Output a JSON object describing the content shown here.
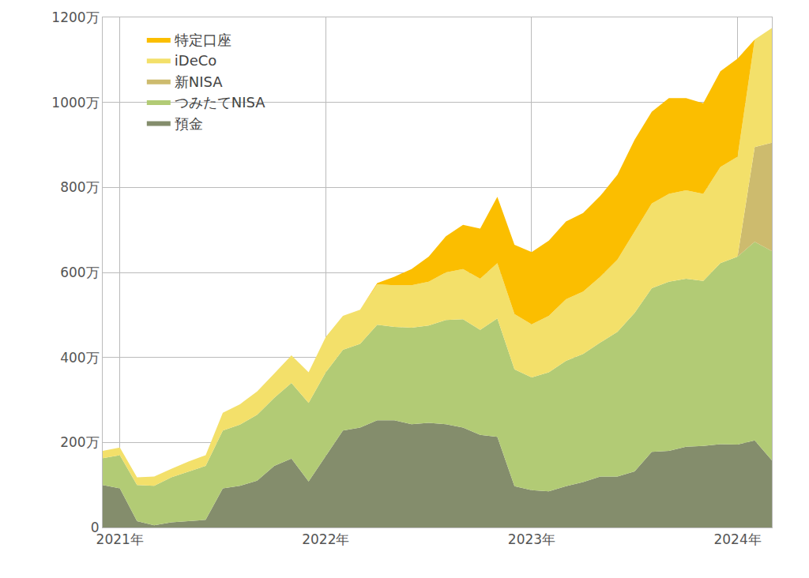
{
  "chart_data": {
    "type": "area",
    "stacked": true,
    "grid": true,
    "legend": "upper left",
    "categories": [
      null,
      "2021年",
      null,
      null,
      null,
      null,
      null,
      null,
      null,
      null,
      null,
      null,
      null,
      "2022年",
      null,
      null,
      null,
      null,
      null,
      null,
      null,
      null,
      null,
      null,
      null,
      "2023年",
      null,
      null,
      null,
      null,
      null,
      null,
      null,
      null,
      null,
      null,
      null,
      "2024年",
      null,
      null
    ],
    "ylim": [
      0,
      1200
    ],
    "yticks": [
      0,
      {
        "value": 200,
        "label": "200万"
      },
      {
        "value": 400,
        "label": "400万"
      },
      {
        "value": 600,
        "label": "600万"
      },
      {
        "value": 800,
        "label": "800万"
      },
      {
        "value": 1000,
        "label": "1000万"
      },
      {
        "value": 1200,
        "label": "1200万"
      }
    ],
    "series": [
      {
        "name": "預金",
        "color": "#848d6c",
        "values": [
          100,
          92,
          15,
          5,
          12,
          15,
          18,
          92,
          98,
          110,
          145,
          162,
          108,
          168,
          228,
          235,
          252,
          252,
          243,
          246,
          243,
          235,
          218,
          213,
          97,
          88,
          85,
          97,
          107,
          120,
          120,
          132,
          178,
          180,
          190,
          192,
          196,
          195,
          205,
          158
        ]
      },
      {
        "name": "つみたてNISA",
        "color": "#b2cb75",
        "values": [
          63,
          78,
          85,
          93,
          106,
          117,
          127,
          136,
          144,
          155,
          160,
          178,
          185,
          197,
          190,
          197,
          225,
          220,
          227,
          229,
          245,
          255,
          247,
          279,
          275,
          265,
          280,
          295,
          301,
          315,
          340,
          373,
          385,
          398,
          395,
          388,
          426,
          442,
          467,
          492
        ]
      },
      {
        "name": "新NISA",
        "color": "#cdbb6e",
        "values": [
          null,
          null,
          null,
          null,
          null,
          null,
          null,
          null,
          null,
          null,
          null,
          null,
          null,
          null,
          null,
          null,
          null,
          null,
          null,
          null,
          null,
          null,
          null,
          null,
          null,
          null,
          null,
          null,
          null,
          null,
          null,
          null,
          null,
          null,
          null,
          null,
          null,
          0,
          223,
          255
        ]
      },
      {
        "name": "iDeCo",
        "color": "#f3e06a",
        "values": [
          17,
          18,
          18,
          22,
          20,
          23,
          25,
          42,
          48,
          55,
          57,
          65,
          72,
          83,
          80,
          80,
          95,
          98,
          100,
          103,
          112,
          118,
          120,
          130,
          130,
          125,
          133,
          145,
          147,
          155,
          170,
          190,
          199,
          207,
          208,
          205,
          226,
          235,
          253,
          270
        ]
      },
      {
        "name": "特定口座",
        "color": "#fbbe00",
        "values": [
          null,
          null,
          null,
          null,
          null,
          null,
          null,
          null,
          null,
          null,
          null,
          null,
          null,
          null,
          null,
          null,
          3,
          20,
          38,
          59,
          85,
          104,
          118,
          156,
          163,
          170,
          177,
          183,
          185,
          190,
          200,
          217,
          216,
          225,
          217,
          213,
          225,
          231,
          0,
          null
        ]
      }
    ]
  }
}
